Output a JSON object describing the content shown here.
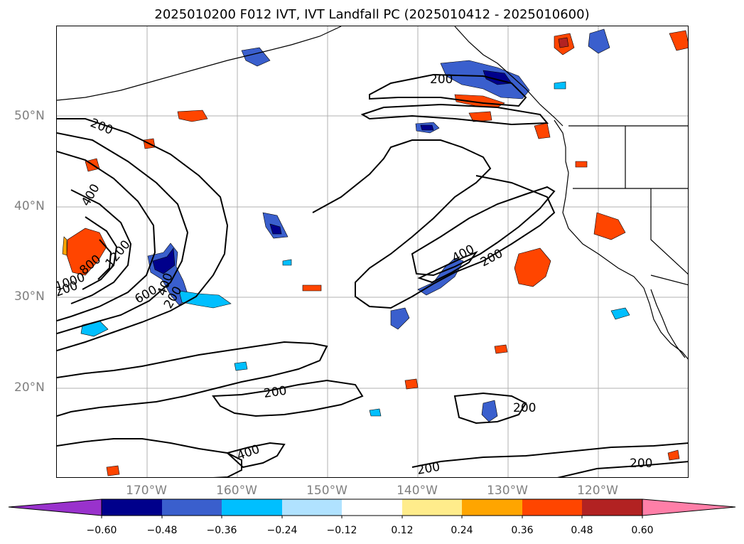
{
  "title": "2025010200 F012 IVT, IVT Landfall PC (2025010412 - 2025010600)",
  "lat_labels": [
    "50°N",
    "40°N",
    "30°N",
    "20°N"
  ],
  "lon_labels": [
    "170°W",
    "160°W",
    "150°W",
    "140°W",
    "130°W",
    "120°W"
  ],
  "colorbar": {
    "ticks": [
      "−0.60",
      "−0.48",
      "−0.36",
      "−0.24",
      "−0.12",
      "0.12",
      "0.24",
      "0.36",
      "0.48",
      "0.60"
    ],
    "colors": [
      "#9932cc",
      "#00008b",
      "#3a5fcd",
      "#00bfff",
      "#b0e2ff",
      "#ffffff",
      "#ffec8b",
      "#ffa500",
      "#ff4500",
      "#b22222",
      "#ff7fa8"
    ],
    "extend": "both"
  },
  "contour_labels": [
    "200",
    "200",
    "200",
    "200",
    "200",
    "200",
    "200",
    "200",
    "200",
    "400",
    "400",
    "400",
    "400",
    "600",
    "800",
    "1000",
    "1200"
  ]
}
